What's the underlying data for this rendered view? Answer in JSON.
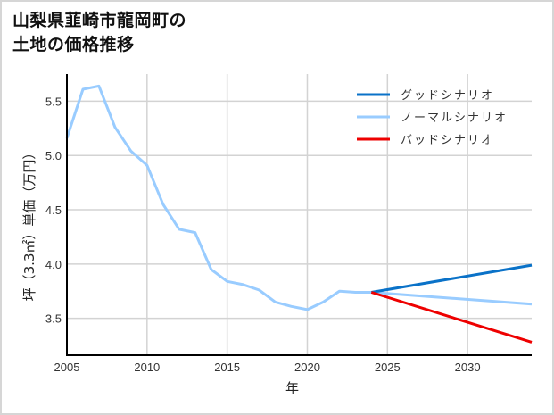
{
  "title_line1": "山梨県韮崎市龍岡町の",
  "title_line2": "土地の価格推移",
  "chart_data": {
    "type": "line",
    "title": "山梨県韮崎市龍岡町の土地の価格推移",
    "xlabel": "年",
    "ylabel": "坪（3.3㎡）単価（万円）",
    "xlim": [
      2005,
      2034
    ],
    "ylim": [
      3.16,
      5.75
    ],
    "xticks": [
      2005,
      2010,
      2015,
      2020,
      2025,
      2030
    ],
    "yticks": [
      3.5,
      4.0,
      4.5,
      5.0,
      5.5
    ],
    "ytick_labels": [
      "3.5",
      "4.0",
      "4.5",
      "5.0",
      "5.5"
    ],
    "grid": true,
    "legend_position": "upper right",
    "series": [
      {
        "name": "グッドシナリオ",
        "color": "#0a72c8",
        "x": [
          2024,
          2034
        ],
        "values": [
          3.74,
          3.99
        ]
      },
      {
        "name": "ノーマルシナリオ",
        "color": "#99ccff",
        "x": [
          2005,
          2006,
          2007,
          2008,
          2009,
          2010,
          2011,
          2012,
          2013,
          2014,
          2015,
          2016,
          2017,
          2018,
          2019,
          2020,
          2021,
          2022,
          2023,
          2024,
          2034
        ],
        "values": [
          5.16,
          5.61,
          5.64,
          5.26,
          5.04,
          4.91,
          4.55,
          4.32,
          4.29,
          3.95,
          3.84,
          3.81,
          3.76,
          3.65,
          3.61,
          3.58,
          3.65,
          3.75,
          3.74,
          3.74,
          3.63
        ]
      },
      {
        "name": "バッドシナリオ",
        "color": "#ee0000",
        "x": [
          2024,
          2034
        ],
        "values": [
          3.74,
          3.28
        ]
      }
    ]
  }
}
